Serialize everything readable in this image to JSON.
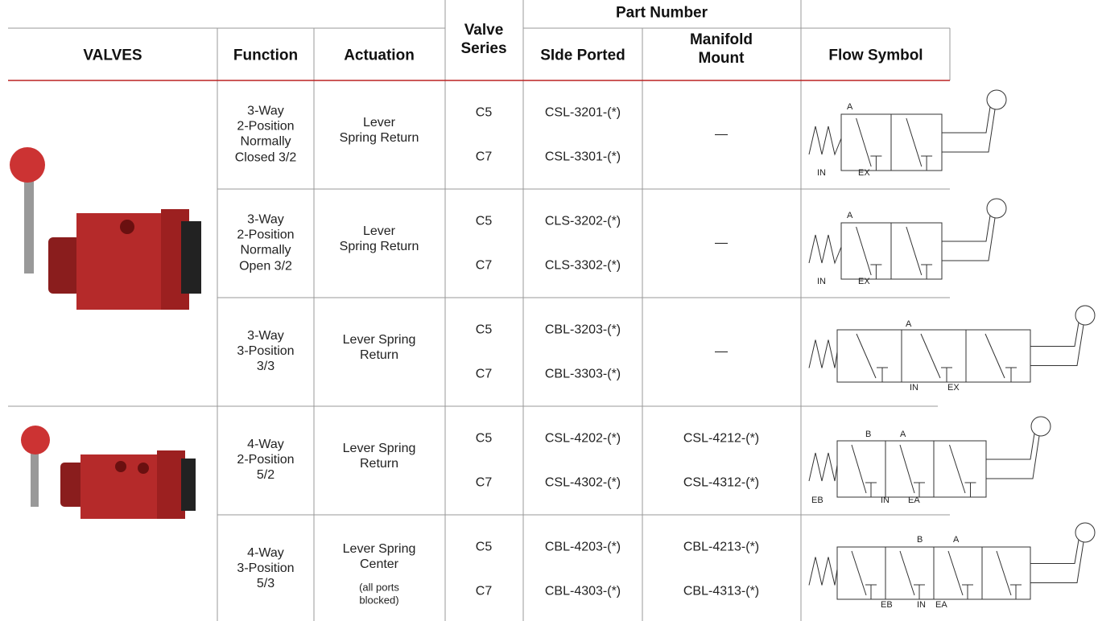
{
  "headers": {
    "valves": "VALVES",
    "function": "Function",
    "actuation": "Actuation",
    "valve_series": "Valve Series",
    "part_number": "Part Number",
    "side_ported": "SIde Ported",
    "manifold_mount": "Manifold Mount",
    "flow_symbol": "Flow Symbol"
  },
  "table": {
    "rows": [
      {
        "function": "3-Way\n2-Position\nNormally\nClosed 3/2",
        "actuation": "Lever\nSpring Return",
        "series": [
          "C5",
          "C7"
        ],
        "side_ported": [
          "CSL-3201-(*)",
          "CSL-3301-(*)"
        ],
        "manifold_mount": "—",
        "symbol_labels": [
          "A",
          "IN",
          "EX"
        ]
      },
      {
        "function": "3-Way\n2-Position\nNormally\nOpen 3/2",
        "actuation": "Lever\nSpring Return",
        "series": [
          "C5",
          "C7"
        ],
        "side_ported": [
          "CLS-3202-(*)",
          "CLS-3302-(*)"
        ],
        "manifold_mount": "—",
        "symbol_labels": [
          "A",
          "IN",
          "EX"
        ]
      },
      {
        "function": "3-Way\n3-Position\n3/3",
        "actuation": "Lever Spring\nReturn",
        "series": [
          "C5",
          "C7"
        ],
        "side_ported": [
          "CBL-3203-(*)",
          "CBL-3303-(*)"
        ],
        "manifold_mount": "—",
        "symbol_labels": [
          "A",
          "IN",
          "EX"
        ]
      },
      {
        "function": "4-Way\n2-Position\n5/2",
        "actuation": "Lever Spring\nReturn",
        "series": [
          "C5",
          "C7"
        ],
        "side_ported": [
          "CSL-4202-(*)",
          "CSL-4302-(*)"
        ],
        "manifold_mount": [
          "CSL-4212-(*)",
          "CSL-4312-(*)"
        ],
        "symbol_labels": [
          "B",
          "A",
          "EB",
          "IN",
          "EA"
        ]
      },
      {
        "function": "4-Way\n3-Position\n5/3",
        "actuation": "Lever Spring\nCenter",
        "actuation_note": "(all ports\nblocked)",
        "series": [
          "C5",
          "C7"
        ],
        "side_ported": [
          "CBL-4203-(*)",
          "CBL-4303-(*)"
        ],
        "manifold_mount": [
          "CBL-4213-(*)",
          "CBL-4313-(*)"
        ],
        "symbol_labels": [
          "B",
          "A",
          "EB",
          "IN",
          "EA"
        ]
      }
    ]
  }
}
